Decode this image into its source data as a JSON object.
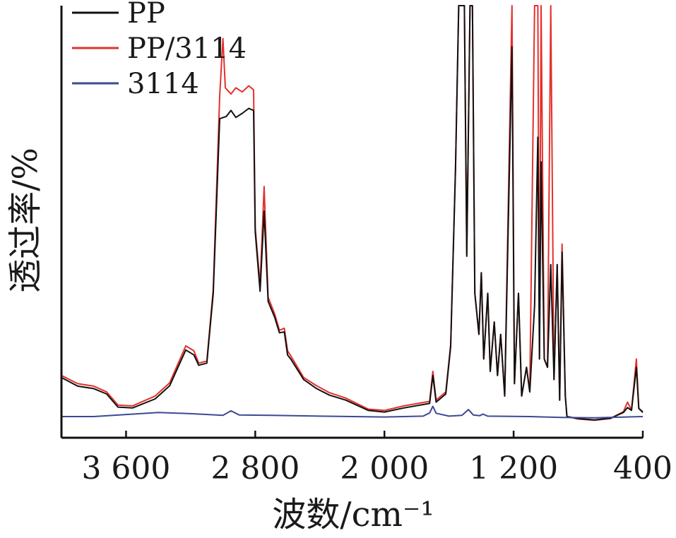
{
  "chart_data": {
    "type": "line",
    "xlabel": "波数/cm⁻¹",
    "ylabel": "透过率/%",
    "xlim": [
      4000,
      400
    ],
    "ylim": [
      0,
      100
    ],
    "x_reversed": true,
    "x_ticks": [
      3600,
      2800,
      2000,
      1200,
      400
    ],
    "x_tick_labels": [
      "3 600",
      "2 800",
      "2 000",
      "1 200",
      "400"
    ],
    "y_ticks_shown": false,
    "grid": false,
    "legend_position": "top-left",
    "series": [
      {
        "name": "PP",
        "color": "#111111",
        "points": [
          [
            4000,
            9.5
          ],
          [
            3900,
            7.4
          ],
          [
            3800,
            6.8
          ],
          [
            3720,
            5.5
          ],
          [
            3650,
            2.3
          ],
          [
            3560,
            2.1
          ],
          [
            3420,
            4.3
          ],
          [
            3330,
            7.5
          ],
          [
            3230,
            16.2
          ],
          [
            3180,
            15.0
          ],
          [
            3150,
            12.5
          ],
          [
            3100,
            13.0
          ],
          [
            3060,
            30.0
          ],
          [
            3020,
            72.5
          ],
          [
            2980,
            73.0
          ],
          [
            2950,
            74.5
          ],
          [
            2920,
            72.8
          ],
          [
            2880,
            73.8
          ],
          [
            2840,
            75.0
          ],
          [
            2810,
            74.5
          ],
          [
            2800,
            45.0
          ],
          [
            2770,
            30.5
          ],
          [
            2745,
            50.0
          ],
          [
            2720,
            28.0
          ],
          [
            2680,
            24.2
          ],
          [
            2650,
            20.4
          ],
          [
            2620,
            20.6
          ],
          [
            2600,
            15.0
          ],
          [
            2580,
            14.0
          ],
          [
            2500,
            9.0
          ],
          [
            2420,
            6.8
          ],
          [
            2340,
            5.2
          ],
          [
            2240,
            4.0
          ],
          [
            2100,
            1.5
          ],
          [
            2000,
            1.1
          ],
          [
            1880,
            2.1
          ],
          [
            1720,
            3.2
          ],
          [
            1700,
            10.0
          ],
          [
            1680,
            3.5
          ],
          [
            1620,
            5.5
          ],
          [
            1590,
            17.0
          ],
          [
            1560,
            60.0
          ],
          [
            1540,
            100.0
          ],
          [
            1505,
            100.0
          ],
          [
            1490,
            39.0
          ],
          [
            1470,
            100.0
          ],
          [
            1455,
            100.0
          ],
          [
            1440,
            30.0
          ],
          [
            1415,
            20.0
          ],
          [
            1400,
            35.0
          ],
          [
            1385,
            14.0
          ],
          [
            1360,
            30.0
          ],
          [
            1345,
            11.0
          ],
          [
            1320,
            23.0
          ],
          [
            1300,
            10.0
          ],
          [
            1280,
            20.0
          ],
          [
            1255,
            5.0
          ],
          [
            1210,
            90.0
          ],
          [
            1195,
            8.0
          ],
          [
            1170,
            30.0
          ],
          [
            1150,
            5.0
          ],
          [
            1120,
            12.0
          ],
          [
            1100,
            6.0
          ],
          [
            1070,
            27.0
          ],
          [
            1050,
            68.0
          ],
          [
            1040,
            14.0
          ],
          [
            1030,
            62.0
          ],
          [
            1010,
            14.0
          ],
          [
            990,
            12.0
          ],
          [
            970,
            37.0
          ],
          [
            950,
            9.0
          ],
          [
            930,
            37.0
          ],
          [
            915,
            4.0
          ],
          [
            900,
            40.0
          ],
          [
            880,
            5.0
          ],
          [
            870,
            0.0
          ],
          [
            800,
            -0.5
          ],
          [
            700,
            -0.8
          ],
          [
            600,
            -0.4
          ],
          [
            520,
            1.0
          ],
          [
            495,
            2.2
          ],
          [
            470,
            1.5
          ],
          [
            440,
            12.0
          ],
          [
            425,
            2.0
          ],
          [
            400,
            1.0
          ]
        ]
      },
      {
        "name": "PP/3114",
        "color": "#e4302c",
        "points": [
          [
            4000,
            10.0
          ],
          [
            3900,
            8.0
          ],
          [
            3800,
            7.4
          ],
          [
            3720,
            6.0
          ],
          [
            3650,
            2.8
          ],
          [
            3560,
            2.6
          ],
          [
            3420,
            5.0
          ],
          [
            3330,
            8.2
          ],
          [
            3230,
            17.2
          ],
          [
            3180,
            16.0
          ],
          [
            3150,
            13.0
          ],
          [
            3100,
            13.5
          ],
          [
            3060,
            31.0
          ],
          [
            3020,
            78.0
          ],
          [
            3000,
            92.0
          ],
          [
            2985,
            80.0
          ],
          [
            2950,
            78.5
          ],
          [
            2920,
            80.0
          ],
          [
            2880,
            79.0
          ],
          [
            2840,
            80.5
          ],
          [
            2810,
            79.5
          ],
          [
            2800,
            46.0
          ],
          [
            2770,
            32.0
          ],
          [
            2745,
            56.0
          ],
          [
            2720,
            29.0
          ],
          [
            2680,
            25.0
          ],
          [
            2650,
            21.0
          ],
          [
            2620,
            21.5
          ],
          [
            2600,
            16.0
          ],
          [
            2580,
            14.8
          ],
          [
            2500,
            9.5
          ],
          [
            2420,
            7.5
          ],
          [
            2340,
            5.8
          ],
          [
            2240,
            4.5
          ],
          [
            2100,
            1.8
          ],
          [
            2000,
            1.5
          ],
          [
            1880,
            2.6
          ],
          [
            1720,
            3.7
          ],
          [
            1700,
            11.0
          ],
          [
            1680,
            4.0
          ],
          [
            1620,
            6.0
          ],
          [
            1590,
            17.5
          ],
          [
            1560,
            60.0
          ],
          [
            1540,
            100.0
          ],
          [
            1505,
            100.0
          ],
          [
            1490,
            39.5
          ],
          [
            1470,
            100.0
          ],
          [
            1455,
            100.0
          ],
          [
            1440,
            30.0
          ],
          [
            1415,
            20.0
          ],
          [
            1400,
            35.0
          ],
          [
            1385,
            14.0
          ],
          [
            1360,
            30.0
          ],
          [
            1345,
            11.0
          ],
          [
            1320,
            23.0
          ],
          [
            1300,
            10.0
          ],
          [
            1280,
            20.0
          ],
          [
            1255,
            5.0
          ],
          [
            1210,
            100.0
          ],
          [
            1195,
            8.0
          ],
          [
            1170,
            30.0
          ],
          [
            1150,
            5.0
          ],
          [
            1120,
            12.0
          ],
          [
            1100,
            6.0
          ],
          [
            1070,
            100.0
          ],
          [
            1050,
            100.0
          ],
          [
            1040,
            14.0
          ],
          [
            1030,
            100.0
          ],
          [
            1010,
            14.0
          ],
          [
            990,
            12.0
          ],
          [
            970,
            100.0
          ],
          [
            950,
            9.0
          ],
          [
            930,
            37.0
          ],
          [
            915,
            4.0
          ],
          [
            900,
            42.0
          ],
          [
            880,
            5.0
          ],
          [
            870,
            0.0
          ],
          [
            800,
            -0.6
          ],
          [
            700,
            -0.9
          ],
          [
            600,
            -0.5
          ],
          [
            520,
            1.2
          ],
          [
            495,
            3.5
          ],
          [
            470,
            1.6
          ],
          [
            440,
            14.0
          ],
          [
            425,
            2.0
          ],
          [
            400,
            1.2
          ]
        ]
      },
      {
        "name": "3114",
        "color": "#3b4a93",
        "points": [
          [
            4000,
            0.0
          ],
          [
            3800,
            0.0
          ],
          [
            3600,
            0.5
          ],
          [
            3400,
            1.0
          ],
          [
            3200,
            0.7
          ],
          [
            3000,
            0.3
          ],
          [
            2950,
            1.4
          ],
          [
            2900,
            0.4
          ],
          [
            2700,
            0.3
          ],
          [
            2400,
            0.1
          ],
          [
            2000,
            -0.1
          ],
          [
            1760,
            0.1
          ],
          [
            1720,
            0.9
          ],
          [
            1700,
            2.5
          ],
          [
            1680,
            0.8
          ],
          [
            1600,
            0.1
          ],
          [
            1520,
            0.3
          ],
          [
            1480,
            1.7
          ],
          [
            1450,
            0.4
          ],
          [
            1410,
            0.2
          ],
          [
            1390,
            0.6
          ],
          [
            1360,
            0.1
          ],
          [
            1100,
            0.0
          ],
          [
            900,
            -0.2
          ],
          [
            700,
            -0.3
          ],
          [
            500,
            -0.1
          ],
          [
            400,
            0.0
          ]
        ]
      }
    ]
  }
}
